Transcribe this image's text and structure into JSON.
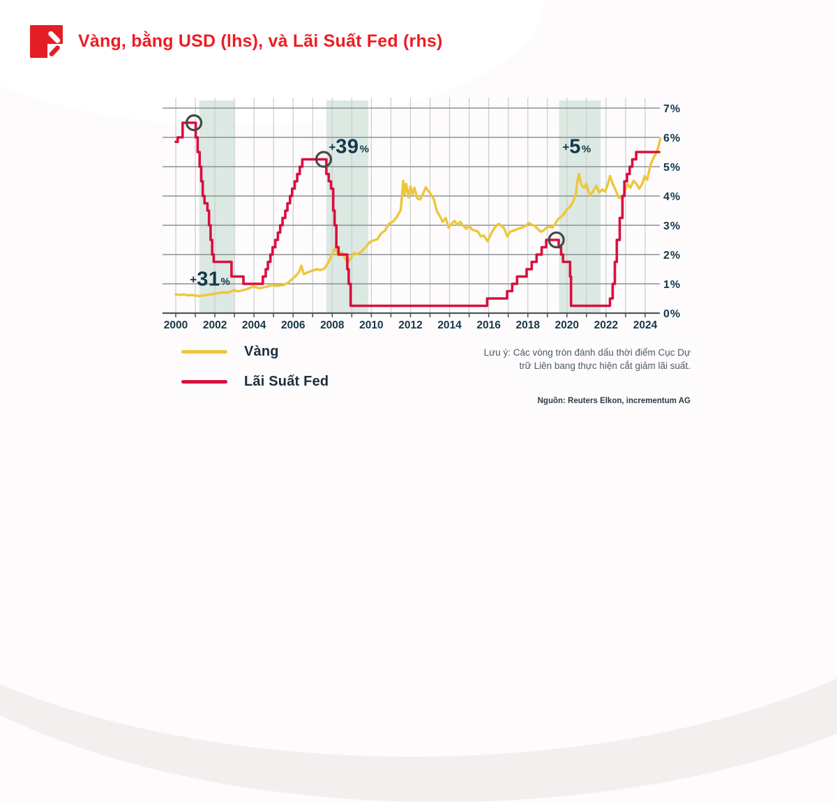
{
  "header": {
    "title": "Vàng, bằng USD (lhs), và Lãi Suất Fed (rhs)",
    "logo_icon": "incrementum-flag-logo"
  },
  "legend": [
    {
      "label": "Vàng",
      "color": "#edc63b"
    },
    {
      "label": "Lãi Suất Fed",
      "color": "#d8103f"
    }
  ],
  "note": {
    "line1": "Lưu ý: Các vòng tròn đánh dấu thời điểm Cục Dự",
    "line2": "trữ Liên bang thực hiện cắt giảm lãi suất."
  },
  "source": "Nguồn: Reuters Elkon, incrementum AG",
  "colors": {
    "title_red": "#ec1c24",
    "fed_line": "#d8103f",
    "gold_line": "#edc63b",
    "band_green": "#dce9e2",
    "grid_vertical": "#c9cecf",
    "grid_horizontal": "#8b9192",
    "axis": "#4f575a",
    "tick_text": "#17384a",
    "circle_stroke": "#474747",
    "annotation_text": "#14384c"
  },
  "chart_data": {
    "type": "line",
    "title": "Vàng, bằng USD (lhs), và Lãi Suất Fed (rhs)",
    "x_axis": {
      "range": [
        2000,
        2024.8
      ],
      "tick_labels": [
        "2000",
        "2002",
        "2004",
        "2006",
        "2008",
        "2010",
        "2012",
        "2014",
        "2016",
        "2018",
        "2020",
        "2022",
        "2024"
      ],
      "tick_values": [
        2000,
        2002,
        2004,
        2006,
        2008,
        2010,
        2012,
        2014,
        2016,
        2018,
        2020,
        2022,
        2024
      ],
      "minor_gridline_every_year": true
    },
    "y_axis_right": {
      "range": [
        0,
        7
      ],
      "tick_labels": [
        "0%",
        "1%",
        "2%",
        "3%",
        "4%",
        "5%",
        "6%",
        "7%"
      ],
      "tick_values": [
        0,
        1,
        2,
        3,
        4,
        5,
        6,
        7
      ],
      "grid": true
    },
    "y_axis_left": {
      "labels_visible": false,
      "series": "Vàng (USD)"
    },
    "recession_bands": [
      {
        "from": 2001.2,
        "to": 2003.0
      },
      {
        "from": 2007.7,
        "to": 2009.85
      },
      {
        "from": 2019.6,
        "to": 2021.72
      }
    ],
    "rate_cut_circles": [
      {
        "x": 2000.93,
        "y": 6.5
      },
      {
        "x": 2007.56,
        "y": 5.25
      },
      {
        "x": 2019.46,
        "y": 2.5
      }
    ],
    "annotations": [
      {
        "plus": "+",
        "value": "31",
        "pct": "%",
        "x": 2001.75,
        "y": 1.15
      },
      {
        "plus": "+",
        "value": "39",
        "pct": "%",
        "x": 2008.85,
        "y": 5.67
      },
      {
        "plus": "+",
        "value": "5",
        "pct": "%",
        "x": 2020.5,
        "y": 5.67
      }
    ],
    "series": [
      {
        "name": "Lãi Suất Fed",
        "style": "step",
        "color": "#d8103f",
        "unit": "% (rhs)",
        "end_x": 2024.72,
        "points": [
          [
            2000.0,
            5.85
          ],
          [
            2000.1,
            6.0
          ],
          [
            2000.35,
            6.5
          ],
          [
            2001.02,
            6.0
          ],
          [
            2001.12,
            5.5
          ],
          [
            2001.22,
            5.0
          ],
          [
            2001.3,
            4.5
          ],
          [
            2001.38,
            4.0
          ],
          [
            2001.47,
            3.75
          ],
          [
            2001.62,
            3.5
          ],
          [
            2001.7,
            3.0
          ],
          [
            2001.78,
            2.5
          ],
          [
            2001.86,
            2.0
          ],
          [
            2001.94,
            1.75
          ],
          [
            2002.85,
            1.25
          ],
          [
            2003.46,
            1.0
          ],
          [
            2004.45,
            1.25
          ],
          [
            2004.6,
            1.5
          ],
          [
            2004.71,
            1.75
          ],
          [
            2004.84,
            2.0
          ],
          [
            2004.95,
            2.25
          ],
          [
            2005.09,
            2.5
          ],
          [
            2005.22,
            2.75
          ],
          [
            2005.34,
            3.0
          ],
          [
            2005.46,
            3.25
          ],
          [
            2005.6,
            3.5
          ],
          [
            2005.71,
            3.75
          ],
          [
            2005.84,
            4.0
          ],
          [
            2005.95,
            4.25
          ],
          [
            2006.08,
            4.5
          ],
          [
            2006.21,
            4.75
          ],
          [
            2006.34,
            5.0
          ],
          [
            2006.47,
            5.25
          ],
          [
            2007.7,
            4.75
          ],
          [
            2007.82,
            4.5
          ],
          [
            2007.94,
            4.25
          ],
          [
            2008.05,
            3.5
          ],
          [
            2008.12,
            3.0
          ],
          [
            2008.21,
            2.25
          ],
          [
            2008.32,
            2.0
          ],
          [
            2008.77,
            1.5
          ],
          [
            2008.84,
            1.0
          ],
          [
            2008.94,
            0.25
          ],
          [
            2015.92,
            0.5
          ],
          [
            2016.94,
            0.75
          ],
          [
            2017.2,
            1.0
          ],
          [
            2017.45,
            1.25
          ],
          [
            2017.94,
            1.5
          ],
          [
            2018.2,
            1.75
          ],
          [
            2018.45,
            2.0
          ],
          [
            2018.71,
            2.25
          ],
          [
            2018.94,
            2.5
          ],
          [
            2019.58,
            2.25
          ],
          [
            2019.7,
            2.0
          ],
          [
            2019.8,
            1.75
          ],
          [
            2020.16,
            1.25
          ],
          [
            2020.21,
            0.25
          ],
          [
            2022.2,
            0.5
          ],
          [
            2022.34,
            1.0
          ],
          [
            2022.45,
            1.75
          ],
          [
            2022.55,
            2.5
          ],
          [
            2022.7,
            3.25
          ],
          [
            2022.84,
            4.0
          ],
          [
            2022.94,
            4.5
          ],
          [
            2023.07,
            4.75
          ],
          [
            2023.21,
            5.0
          ],
          [
            2023.34,
            5.25
          ],
          [
            2023.54,
            5.5
          ]
        ]
      },
      {
        "name": "Vàng",
        "style": "line",
        "color": "#edc63b",
        "unit": "rhs-equivalent units (lhs axis unlabeled)",
        "points": [
          [
            2000.0,
            0.64
          ],
          [
            2000.2,
            0.62
          ],
          [
            2000.4,
            0.64
          ],
          [
            2000.6,
            0.61
          ],
          [
            2000.8,
            0.62
          ],
          [
            2001.0,
            0.6
          ],
          [
            2001.2,
            0.58
          ],
          [
            2001.4,
            0.61
          ],
          [
            2001.6,
            0.62
          ],
          [
            2001.8,
            0.64
          ],
          [
            2002.0,
            0.66
          ],
          [
            2002.2,
            0.69
          ],
          [
            2002.4,
            0.71
          ],
          [
            2002.6,
            0.7
          ],
          [
            2002.8,
            0.73
          ],
          [
            2003.0,
            0.79
          ],
          [
            2003.15,
            0.74
          ],
          [
            2003.35,
            0.77
          ],
          [
            2003.55,
            0.8
          ],
          [
            2003.75,
            0.85
          ],
          [
            2003.95,
            0.91
          ],
          [
            2004.1,
            0.88
          ],
          [
            2004.3,
            0.85
          ],
          [
            2004.5,
            0.88
          ],
          [
            2004.7,
            0.91
          ],
          [
            2004.9,
            0.96
          ],
          [
            2005.1,
            0.93
          ],
          [
            2005.3,
            0.94
          ],
          [
            2005.5,
            0.96
          ],
          [
            2005.7,
            1.02
          ],
          [
            2005.9,
            1.13
          ],
          [
            2006.1,
            1.25
          ],
          [
            2006.3,
            1.4
          ],
          [
            2006.42,
            1.62
          ],
          [
            2006.55,
            1.33
          ],
          [
            2006.7,
            1.38
          ],
          [
            2006.85,
            1.42
          ],
          [
            2007.0,
            1.45
          ],
          [
            2007.2,
            1.5
          ],
          [
            2007.4,
            1.47
          ],
          [
            2007.6,
            1.52
          ],
          [
            2007.8,
            1.72
          ],
          [
            2008.0,
            2.02
          ],
          [
            2008.15,
            2.22
          ],
          [
            2008.3,
            1.98
          ],
          [
            2008.5,
            2.08
          ],
          [
            2008.7,
            1.82
          ],
          [
            2008.8,
            1.72
          ],
          [
            2008.95,
            1.88
          ],
          [
            2009.1,
            2.05
          ],
          [
            2009.3,
            2.02
          ],
          [
            2009.5,
            2.1
          ],
          [
            2009.7,
            2.25
          ],
          [
            2009.9,
            2.42
          ],
          [
            2010.1,
            2.48
          ],
          [
            2010.3,
            2.52
          ],
          [
            2010.5,
            2.72
          ],
          [
            2010.7,
            2.82
          ],
          [
            2010.9,
            3.05
          ],
          [
            2011.1,
            3.12
          ],
          [
            2011.3,
            3.28
          ],
          [
            2011.5,
            3.52
          ],
          [
            2011.63,
            4.52
          ],
          [
            2011.7,
            4.05
          ],
          [
            2011.78,
            4.42
          ],
          [
            2011.9,
            3.95
          ],
          [
            2012.0,
            4.32
          ],
          [
            2012.1,
            4.05
          ],
          [
            2012.2,
            4.28
          ],
          [
            2012.35,
            3.92
          ],
          [
            2012.5,
            3.88
          ],
          [
            2012.65,
            4.08
          ],
          [
            2012.78,
            4.3
          ],
          [
            2012.9,
            4.18
          ],
          [
            2013.05,
            4.05
          ],
          [
            2013.2,
            3.88
          ],
          [
            2013.35,
            3.48
          ],
          [
            2013.5,
            3.32
          ],
          [
            2013.65,
            3.12
          ],
          [
            2013.8,
            3.25
          ],
          [
            2013.95,
            2.92
          ],
          [
            2014.1,
            3.05
          ],
          [
            2014.25,
            3.15
          ],
          [
            2014.4,
            3.02
          ],
          [
            2014.55,
            3.12
          ],
          [
            2014.7,
            2.98
          ],
          [
            2014.85,
            2.88
          ],
          [
            2015.0,
            2.98
          ],
          [
            2015.15,
            2.85
          ],
          [
            2015.3,
            2.82
          ],
          [
            2015.45,
            2.78
          ],
          [
            2015.6,
            2.62
          ],
          [
            2015.75,
            2.65
          ],
          [
            2015.95,
            2.45
          ],
          [
            2016.1,
            2.68
          ],
          [
            2016.3,
            2.92
          ],
          [
            2016.5,
            3.05
          ],
          [
            2016.65,
            2.98
          ],
          [
            2016.8,
            2.88
          ],
          [
            2016.95,
            2.62
          ],
          [
            2017.1,
            2.78
          ],
          [
            2017.3,
            2.82
          ],
          [
            2017.5,
            2.88
          ],
          [
            2017.7,
            2.92
          ],
          [
            2017.9,
            2.98
          ],
          [
            2018.05,
            3.08
          ],
          [
            2018.2,
            3.02
          ],
          [
            2018.35,
            2.98
          ],
          [
            2018.5,
            2.88
          ],
          [
            2018.65,
            2.78
          ],
          [
            2018.8,
            2.82
          ],
          [
            2018.95,
            2.92
          ],
          [
            2019.1,
            2.95
          ],
          [
            2019.25,
            2.92
          ],
          [
            2019.4,
            3.05
          ],
          [
            2019.55,
            3.22
          ],
          [
            2019.7,
            3.28
          ],
          [
            2019.85,
            3.38
          ],
          [
            2020.0,
            3.55
          ],
          [
            2020.15,
            3.62
          ],
          [
            2020.3,
            3.78
          ],
          [
            2020.45,
            4.05
          ],
          [
            2020.55,
            4.55
          ],
          [
            2020.62,
            4.75
          ],
          [
            2020.7,
            4.48
          ],
          [
            2020.8,
            4.32
          ],
          [
            2020.9,
            4.28
          ],
          [
            2021.0,
            4.42
          ],
          [
            2021.1,
            4.15
          ],
          [
            2021.2,
            4.02
          ],
          [
            2021.35,
            4.18
          ],
          [
            2021.5,
            4.35
          ],
          [
            2021.65,
            4.12
          ],
          [
            2021.8,
            4.22
          ],
          [
            2021.95,
            4.15
          ],
          [
            2022.1,
            4.42
          ],
          [
            2022.2,
            4.68
          ],
          [
            2022.35,
            4.4
          ],
          [
            2022.5,
            4.18
          ],
          [
            2022.65,
            3.95
          ],
          [
            2022.8,
            3.92
          ],
          [
            2022.95,
            4.12
          ],
          [
            2023.1,
            4.4
          ],
          [
            2023.25,
            4.28
          ],
          [
            2023.4,
            4.52
          ],
          [
            2023.55,
            4.42
          ],
          [
            2023.7,
            4.25
          ],
          [
            2023.85,
            4.42
          ],
          [
            2023.98,
            4.68
          ],
          [
            2024.1,
            4.55
          ],
          [
            2024.2,
            4.85
          ],
          [
            2024.3,
            5.12
          ],
          [
            2024.42,
            5.28
          ],
          [
            2024.52,
            5.42
          ],
          [
            2024.6,
            5.5
          ],
          [
            2024.68,
            5.68
          ],
          [
            2024.78,
            5.95
          ]
        ]
      }
    ]
  }
}
